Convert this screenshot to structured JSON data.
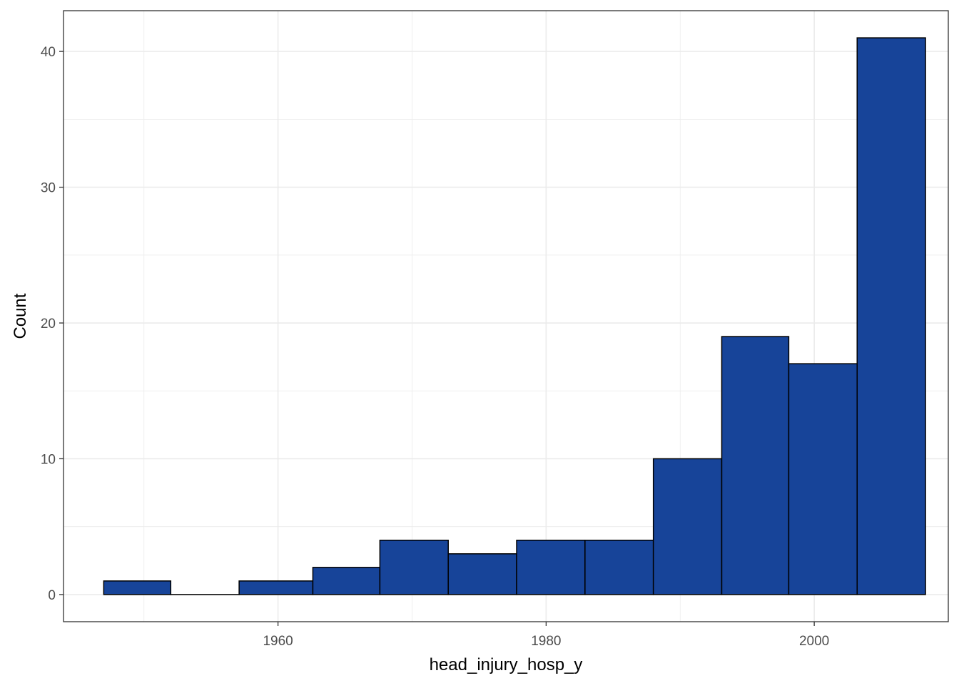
{
  "chart_data": {
    "type": "bar",
    "histogram": true,
    "xlabel": "head_injury_hosp_y",
    "ylabel": "Count",
    "bin_width": 5.04,
    "bins": [
      {
        "start": 1947.0,
        "end": 1952.0,
        "count": 1
      },
      {
        "start": 1952.0,
        "end": 1957.1,
        "count": 0
      },
      {
        "start": 1957.1,
        "end": 1962.6,
        "count": 1
      },
      {
        "start": 1962.6,
        "end": 1967.6,
        "count": 2
      },
      {
        "start": 1967.6,
        "end": 1972.7,
        "count": 4
      },
      {
        "start": 1972.7,
        "end": 1977.8,
        "count": 3
      },
      {
        "start": 1977.8,
        "end": 1982.9,
        "count": 4
      },
      {
        "start": 1982.9,
        "end": 1988.0,
        "count": 4
      },
      {
        "start": 1988.0,
        "end": 1993.1,
        "count": 10
      },
      {
        "start": 1993.1,
        "end": 1998.1,
        "count": 19
      },
      {
        "start": 1998.1,
        "end": 2003.2,
        "count": 17
      },
      {
        "start": 2003.2,
        "end": 2008.3,
        "count": 41
      }
    ],
    "xlim": [
      1944,
      2010
    ],
    "ylim": [
      -2,
      43
    ],
    "x_ticks": [
      1960,
      1980,
      2000
    ],
    "y_ticks": [
      0,
      10,
      20,
      30,
      40
    ],
    "grid": true,
    "legend": "none",
    "colors": {
      "bar_fill": "#174499",
      "bar_stroke": "#000000",
      "grid": "#ebebeb",
      "panel_border": "#333333",
      "tick_label": "#4d4d4d"
    }
  }
}
